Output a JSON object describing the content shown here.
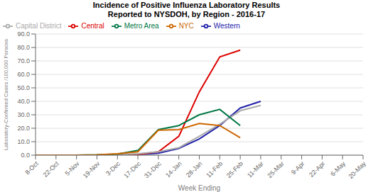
{
  "chart_data": {
    "type": "line",
    "title": "Incidence of Positive Influenza Laboratory Results\nReported to NYSDOH, by Region - 2016-17",
    "xlabel": "Week Ending",
    "ylabel": "Laboratory-Confirmed Cases /100,000 Persons",
    "categories": [
      "8-Oct",
      "22-Oct",
      "5-Nov",
      "19-Nov",
      "3-Dec",
      "17-Dec",
      "31-Dec",
      "14-Jan",
      "28-Jan",
      "11-Feb",
      "25-Feb",
      "11-Mar",
      "25-Mar",
      "9-Apr",
      "22-Apr",
      "6-May",
      "20-May"
    ],
    "series": [
      {
        "name": "Western",
        "color": "#2222aa",
        "values": [
          0.0,
          0.0,
          0.0,
          0.0,
          0.2,
          0.5,
          1.5,
          5.0,
          12.0,
          22.0,
          35.0,
          40.0,
          null,
          null,
          null,
          null,
          null
        ]
      },
      {
        "name": "Central",
        "color": "#dd0000",
        "values": [
          0.0,
          0.0,
          0.0,
          0.0,
          0.2,
          0.5,
          2.5,
          14.0,
          47.0,
          73.0,
          78.0,
          null,
          null,
          null,
          null,
          null,
          null
        ]
      },
      {
        "name": "Capital District",
        "color": "#aaaaaa",
        "values": [
          0.0,
          0.0,
          0.0,
          0.0,
          0.2,
          1.0,
          2.5,
          5.5,
          14.0,
          23.0,
          33.0,
          37.0,
          null,
          null,
          null,
          null,
          null
        ]
      },
      {
        "name": "Metro Area",
        "color": "#007744",
        "values": [
          0.0,
          0.0,
          0.0,
          0.2,
          0.8,
          3.5,
          19.0,
          22.0,
          30.0,
          34.0,
          22.0,
          null,
          null,
          null,
          null,
          null,
          null
        ]
      },
      {
        "name": "NYC",
        "color": "#cc6600",
        "values": [
          0.0,
          0.0,
          0.0,
          0.2,
          1.0,
          2.5,
          18.5,
          19.0,
          23.5,
          22.0,
          13.0,
          null,
          null,
          null,
          null,
          null,
          null
        ]
      }
    ],
    "ylim": [
      0,
      90
    ],
    "yticks": [
      {
        "value": 0,
        "label": "0.0"
      },
      {
        "value": 10,
        "label": "10.0"
      },
      {
        "value": 20,
        "label": "20.0"
      },
      {
        "value": 30,
        "label": "30.0"
      },
      {
        "value": 40,
        "label": "40.0"
      },
      {
        "value": 50,
        "label": "50.0"
      },
      {
        "value": 60,
        "label": "60.0"
      },
      {
        "value": 70,
        "label": "70.0"
      },
      {
        "value": 80,
        "label": "80.0"
      },
      {
        "value": 90,
        "label": "90.0"
      }
    ],
    "grid": "y",
    "legend": "upper left"
  }
}
